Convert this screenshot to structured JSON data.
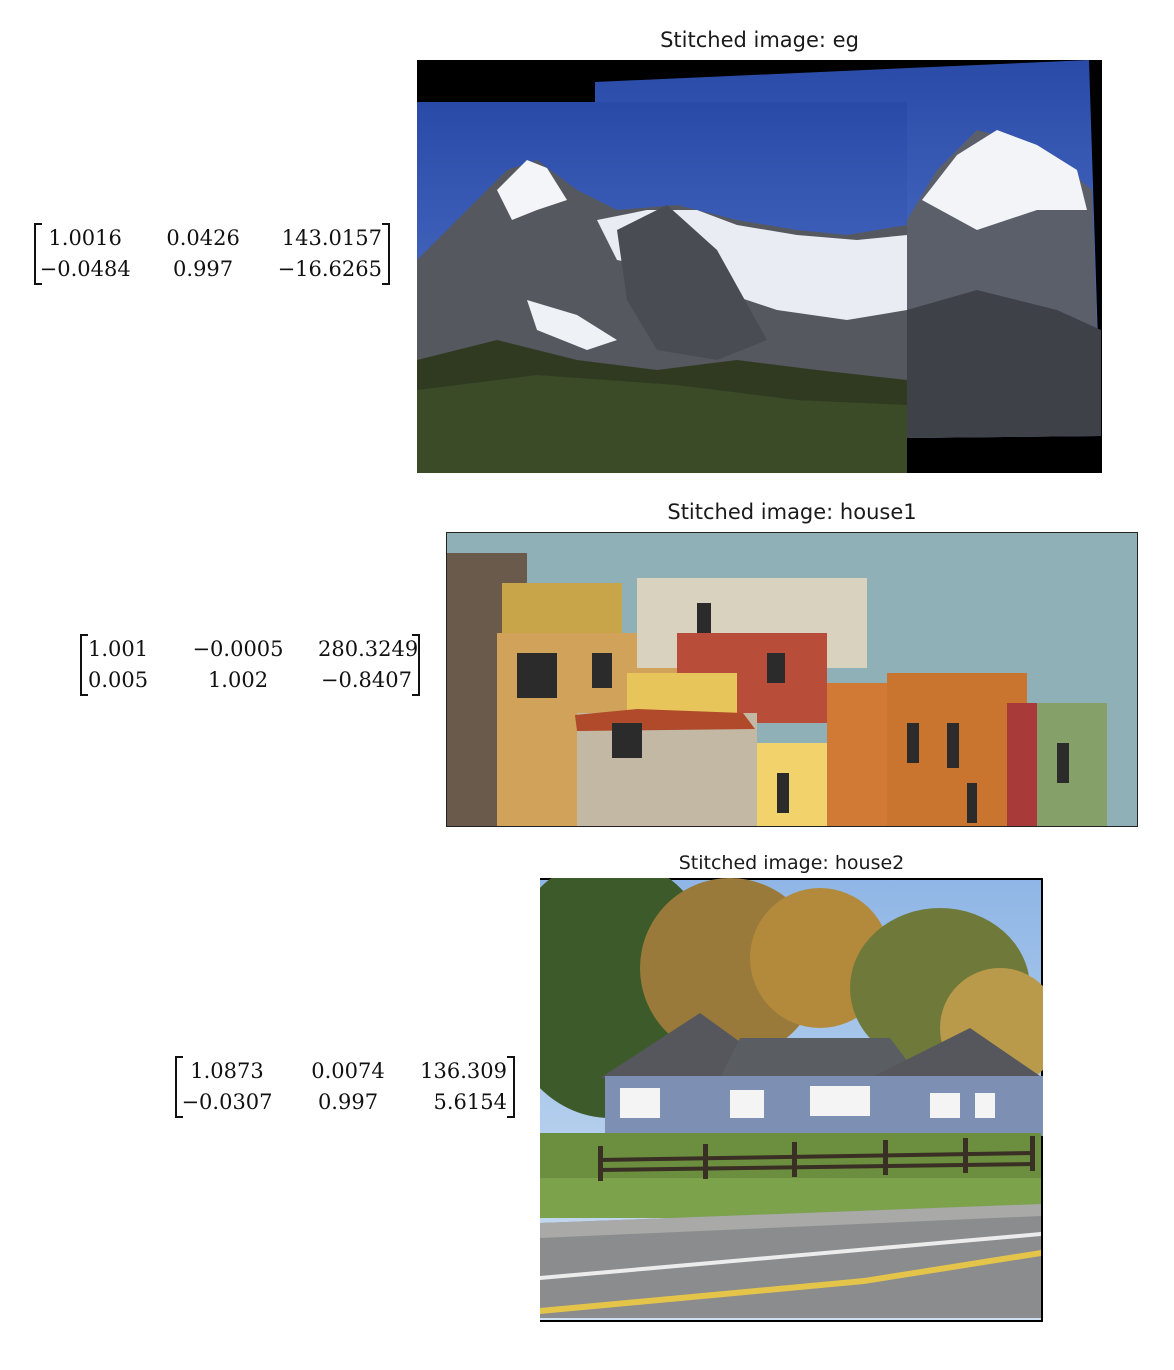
{
  "panels": [
    {
      "title": "Stitched image: eg",
      "matrix": [
        [
          "1.0016",
          "0.0426",
          "143.0157"
        ],
        [
          "−0.0484",
          "0.997",
          "−16.6265"
        ]
      ]
    },
    {
      "title": "Stitched image: house1",
      "matrix": [
        [
          "1.001",
          "−0.0005",
          "280.3249"
        ],
        [
          "0.005",
          "1.002",
          "−0.8407"
        ]
      ]
    },
    {
      "title": "Stitched image: house2",
      "matrix": [
        [
          "1.0873",
          "0.0074",
          "136.309"
        ],
        [
          "−0.0307",
          "0.997",
          "5.6154"
        ]
      ]
    }
  ]
}
